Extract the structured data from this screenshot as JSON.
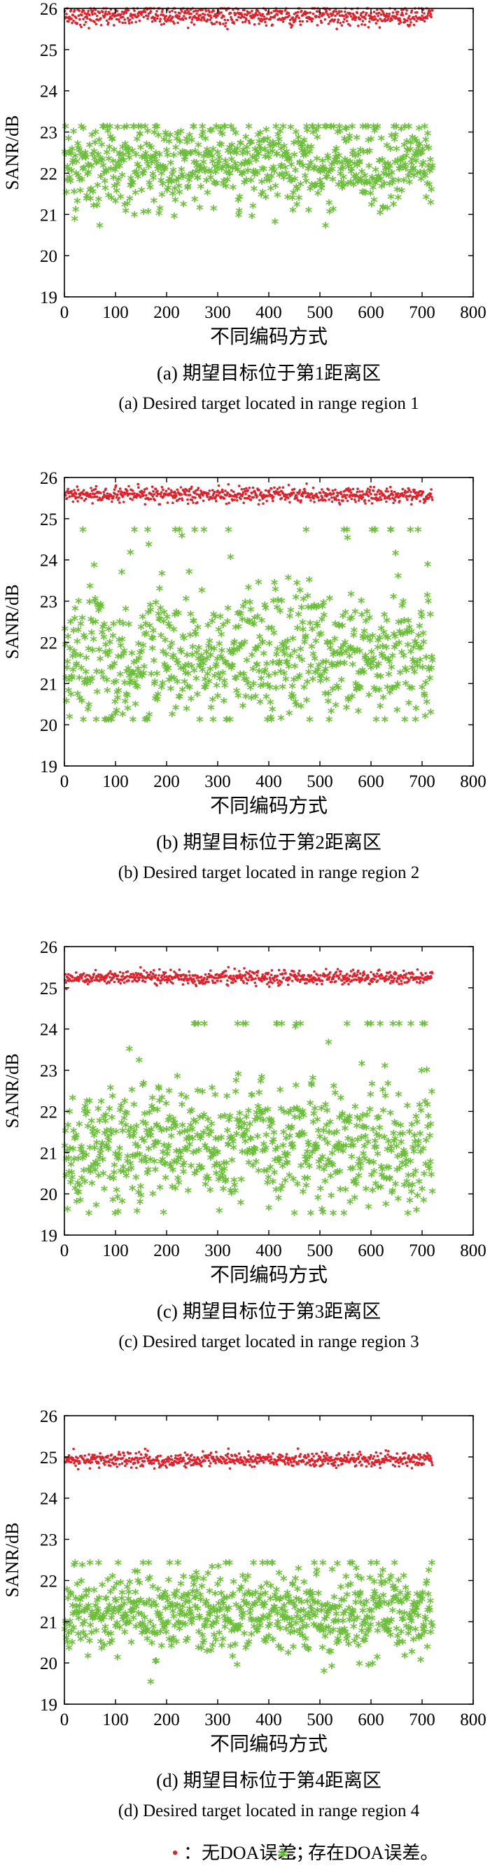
{
  "chart_data": [
    {
      "type": "scatter",
      "panel": "a",
      "caption_cn": "(a) 期望目标位于第1距离区",
      "caption_en": "(a) Desired target located in range region 1",
      "xlabel": "不同编码方式",
      "ylabel": "SANR/dB",
      "xlim": [
        0,
        800
      ],
      "ylim": [
        19,
        26
      ],
      "xticks": [
        "0",
        "100",
        "200",
        "300",
        "400",
        "500",
        "600",
        "700",
        "800"
      ],
      "yticks": [
        "19",
        "20",
        "21",
        "22",
        "23",
        "24",
        "25",
        "26"
      ],
      "grid": false,
      "n_points": 720,
      "series": [
        {
          "marker": "dot",
          "color": "#e0202a",
          "mean": 25.82,
          "spread": 0.12,
          "min": 25.5,
          "max": 26.0
        },
        {
          "marker": "star",
          "color": "#6cbf3a",
          "mean": 22.2,
          "spread": 0.55,
          "min": 20.7,
          "max": 23.1
        }
      ]
    },
    {
      "type": "scatter",
      "panel": "b",
      "caption_cn": "(b) 期望目标位于第2距离区",
      "caption_en": "(b) Desired target located in range region 2",
      "xlabel": "不同编码方式",
      "ylabel": "SANR/dB",
      "xlim": [
        0,
        800
      ],
      "ylim": [
        19,
        26
      ],
      "xticks": [
        "0",
        "100",
        "200",
        "300",
        "400",
        "500",
        "600",
        "700",
        "800"
      ],
      "yticks": [
        "19",
        "20",
        "21",
        "22",
        "23",
        "24",
        "25",
        "26"
      ],
      "grid": false,
      "n_points": 720,
      "series": [
        {
          "marker": "dot",
          "color": "#e0202a",
          "mean": 25.57,
          "spread": 0.09,
          "min": 25.35,
          "max": 25.85
        },
        {
          "marker": "star",
          "color": "#6cbf3a",
          "mean": 21.6,
          "spread": 0.8,
          "min": 20.1,
          "max": 24.7
        }
      ]
    },
    {
      "type": "scatter",
      "panel": "c",
      "caption_cn": "(c) 期望目标位于第3距离区",
      "caption_en": "(c) Desired target located in range region 3",
      "xlabel": "不同编码方式",
      "ylabel": "SANR/dB",
      "xlim": [
        0,
        800
      ],
      "ylim": [
        19,
        26
      ],
      "xticks": [
        "0",
        "100",
        "200",
        "300",
        "400",
        "500",
        "600",
        "700",
        "800"
      ],
      "yticks": [
        "19",
        "20",
        "21",
        "22",
        "23",
        "24",
        "25",
        "26"
      ],
      "grid": false,
      "n_points": 720,
      "series": [
        {
          "marker": "dot",
          "color": "#e0202a",
          "mean": 25.25,
          "spread": 0.08,
          "min": 24.7,
          "max": 25.6
        },
        {
          "marker": "star",
          "color": "#6cbf3a",
          "mean": 21.1,
          "spread": 0.75,
          "min": 19.5,
          "max": 24.1
        }
      ]
    },
    {
      "type": "scatter",
      "panel": "d",
      "caption_cn": "(d) 期望目标位于第4距离区",
      "caption_en": "(d) Desired target located in range region 4",
      "xlabel": "不同编码方式",
      "ylabel": "SANR/dB",
      "xlim": [
        0,
        800
      ],
      "ylim": [
        19,
        26
      ],
      "xticks": [
        "0",
        "100",
        "200",
        "300",
        "400",
        "500",
        "600",
        "700",
        "800"
      ],
      "yticks": [
        "19",
        "20",
        "21",
        "22",
        "23",
        "24",
        "25",
        "26"
      ],
      "grid": false,
      "n_points": 720,
      "series": [
        {
          "marker": "dot",
          "color": "#e0202a",
          "mean": 24.93,
          "spread": 0.09,
          "min": 24.7,
          "max": 25.2
        },
        {
          "marker": "star",
          "color": "#6cbf3a",
          "mean": 21.15,
          "spread": 0.5,
          "min": 19.5,
          "max": 22.4
        }
      ]
    }
  ],
  "legend": {
    "dot_symbol": "•",
    "dot_label": "：无DOA误差；",
    "star_symbol": "*",
    "star_label": "：存在DOA误差。"
  }
}
